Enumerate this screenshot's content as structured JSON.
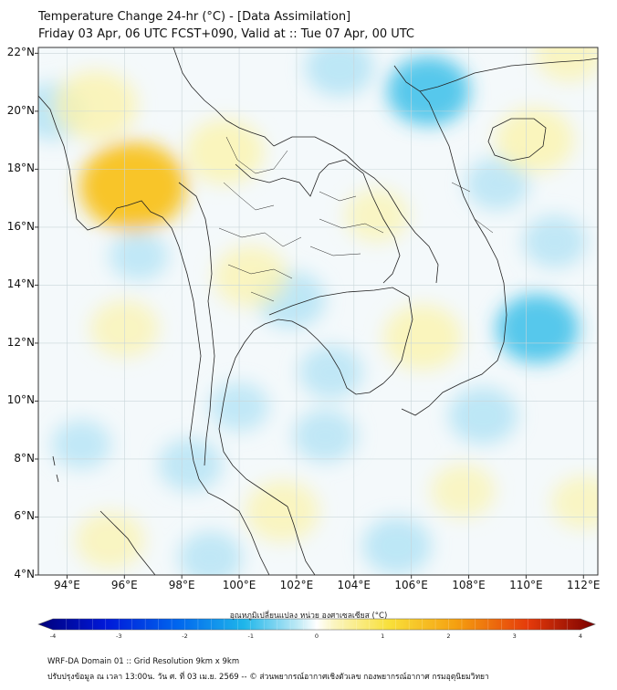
{
  "title": {
    "line1": "Temperature Change 24-hr (°C) - [Data Assimilation]",
    "line2": "Friday 03 Apr, 06 UTC FCST+090, Valid at :: Tue 07 Apr, 00 UTC"
  },
  "map": {
    "lat_labels": [
      "22°N",
      "20°N",
      "18°N",
      "16°N",
      "14°N",
      "12°N",
      "10°N",
      "8°N",
      "6°N",
      "4°N"
    ],
    "lon_labels": [
      "94°E",
      "96°E",
      "98°E",
      "100°E",
      "102°E",
      "104°E",
      "106°E",
      "108°E",
      "110°E",
      "112°E"
    ],
    "lat_values": [
      22,
      20,
      18,
      16,
      14,
      12,
      10,
      8,
      6,
      4
    ],
    "lon_values": [
      94,
      96,
      98,
      100,
      102,
      104,
      106,
      108,
      110,
      112
    ],
    "lat_range": [
      4,
      22.2
    ],
    "lon_range": [
      93,
      112.5
    ],
    "warm_anomalies": [
      {
        "lon": 96.3,
        "lat": 17.4,
        "value": 1.4
      },
      {
        "lon": 95.0,
        "lat": 20.2,
        "value": 0.9
      },
      {
        "lon": 99.5,
        "lat": 18.6,
        "value": 0.8
      },
      {
        "lon": 110.3,
        "lat": 19.0,
        "value": 0.8
      },
      {
        "lon": 100.4,
        "lat": 14.3,
        "value": 0.7
      },
      {
        "lon": 106.4,
        "lat": 12.2,
        "value": 0.8
      },
      {
        "lon": 96.0,
        "lat": 12.5,
        "value": 0.6
      },
      {
        "lon": 101.5,
        "lat": 6.2,
        "value": 0.7
      },
      {
        "lon": 107.8,
        "lat": 6.9,
        "value": 0.5
      },
      {
        "lon": 95.5,
        "lat": 5.2,
        "value": 0.6
      },
      {
        "lon": 104.8,
        "lat": 16.4,
        "value": 0.5
      },
      {
        "lon": 111.5,
        "lat": 22.0,
        "value": 0.6
      },
      {
        "lon": 112.0,
        "lat": 6.5,
        "value": 0.5
      }
    ],
    "cool_anomalies": [
      {
        "lon": 106.6,
        "lat": 20.7,
        "value": -0.9
      },
      {
        "lon": 110.4,
        "lat": 12.5,
        "value": -0.9
      },
      {
        "lon": 101.8,
        "lat": 13.5,
        "value": -0.6
      },
      {
        "lon": 103.5,
        "lat": 21.5,
        "value": -0.6
      },
      {
        "lon": 93.5,
        "lat": 20.0,
        "value": -0.6
      },
      {
        "lon": 109.0,
        "lat": 17.5,
        "value": -0.5
      },
      {
        "lon": 108.5,
        "lat": 9.5,
        "value": -0.6
      },
      {
        "lon": 103.0,
        "lat": 8.8,
        "value": -0.5
      },
      {
        "lon": 98.3,
        "lat": 7.8,
        "value": -0.5
      },
      {
        "lon": 105.5,
        "lat": 5.0,
        "value": -0.6
      },
      {
        "lon": 99.0,
        "lat": 4.6,
        "value": -0.5
      },
      {
        "lon": 94.5,
        "lat": 8.5,
        "value": -0.4
      },
      {
        "lon": 96.5,
        "lat": 15.0,
        "value": -0.4
      },
      {
        "lon": 103.2,
        "lat": 11.0,
        "value": -0.5
      },
      {
        "lon": 100.0,
        "lat": 9.8,
        "value": -0.4
      },
      {
        "lon": 111.0,
        "lat": 15.5,
        "value": -0.5
      }
    ]
  },
  "colorbar": {
    "title": "อุณหภูมิเปลี่ยนแปลง หน่วย องศาเซลเซียส (°C)",
    "min": -4,
    "max": 4,
    "ticks": [
      "-4",
      "-3",
      "-2",
      "-1",
      "0",
      "1",
      "2",
      "3",
      "4"
    ],
    "tick_values": [
      -4,
      -3,
      -2,
      -1,
      0,
      1,
      2,
      3,
      4
    ]
  },
  "footer": {
    "line1": "WRF-DA Domain 01 :: Grid Resolution 9km x 9km",
    "line2": "ปรับปรุงข้อมูล ณ เวลา 13:00น. วัน ศ. ที่ 03 เม.ย. 2569 -- © ส่วนพยากรณ์อากาศเชิงตัวเลข กองพยากรณ์อากาศ กรมอุตุนิยมวิทยา"
  },
  "colors": {
    "neutral": "#f4f9fb",
    "cool_light": "#a9e0f4",
    "cool": "#33bde8",
    "warm_light": "#fbf3ad",
    "warm": "#f8c21c",
    "border_line": "#222222",
    "grid_line": "#c9d6da"
  }
}
